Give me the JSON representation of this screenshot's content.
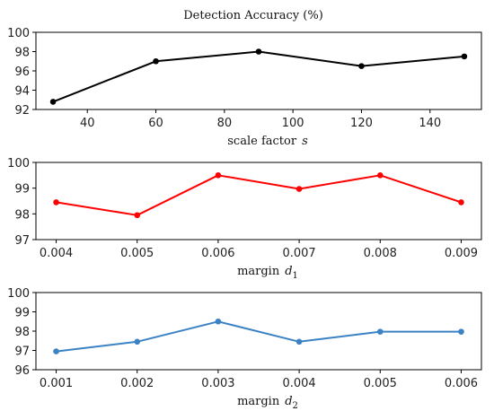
{
  "figure_title": "Detection Accuracy (%)",
  "chart_data": [
    {
      "type": "line",
      "xlabel_text": "scale factor",
      "xlabel_var": "s",
      "xlabel_sub": "",
      "color": "#000000",
      "x": [
        30,
        60,
        90,
        120,
        150
      ],
      "values": [
        92.8,
        97.0,
        98.0,
        96.5,
        97.5
      ],
      "xlim": [
        25,
        155
      ],
      "ylim": [
        92,
        100
      ],
      "xticks": [
        40,
        60,
        80,
        100,
        120,
        140
      ],
      "xtick_labels": [
        "40",
        "60",
        "80",
        "100",
        "120",
        "140"
      ],
      "yticks": [
        92,
        94,
        96,
        98,
        100
      ],
      "ytick_labels": [
        "92",
        "94",
        "96",
        "98",
        "100"
      ],
      "grid": false
    },
    {
      "type": "line",
      "xlabel_text": "margin",
      "xlabel_var": "d",
      "xlabel_sub": "1",
      "color": "#ff0000",
      "x": [
        0.004,
        0.005,
        0.006,
        0.007,
        0.008,
        0.009
      ],
      "values": [
        98.45,
        97.95,
        99.5,
        98.97,
        99.5,
        98.45
      ],
      "xlim": [
        0.00375,
        0.00925
      ],
      "ylim": [
        97,
        100
      ],
      "xticks": [
        0.004,
        0.005,
        0.006,
        0.007,
        0.008,
        0.009
      ],
      "xtick_labels": [
        "0.004",
        "0.005",
        "0.006",
        "0.007",
        "0.008",
        "0.009"
      ],
      "yticks": [
        97,
        98,
        99,
        100
      ],
      "ytick_labels": [
        "97",
        "98",
        "99",
        "100"
      ],
      "grid": false
    },
    {
      "type": "line",
      "xlabel_text": "margin",
      "xlabel_var": "d",
      "xlabel_sub": "2",
      "color": "#3b82c4",
      "x": [
        0.001,
        0.002,
        0.003,
        0.004,
        0.005,
        0.006
      ],
      "values": [
        96.95,
        97.45,
        98.5,
        97.45,
        97.97,
        97.97
      ],
      "xlim": [
        0.00075,
        0.00625
      ],
      "ylim": [
        96,
        100
      ],
      "xticks": [
        0.001,
        0.002,
        0.003,
        0.004,
        0.005,
        0.006
      ],
      "xtick_labels": [
        "0.001",
        "0.002",
        "0.003",
        "0.004",
        "0.005",
        "0.006"
      ],
      "yticks": [
        96,
        97,
        98,
        99,
        100
      ],
      "ytick_labels": [
        "96",
        "97",
        "98",
        "99",
        "100"
      ],
      "grid": false
    }
  ]
}
